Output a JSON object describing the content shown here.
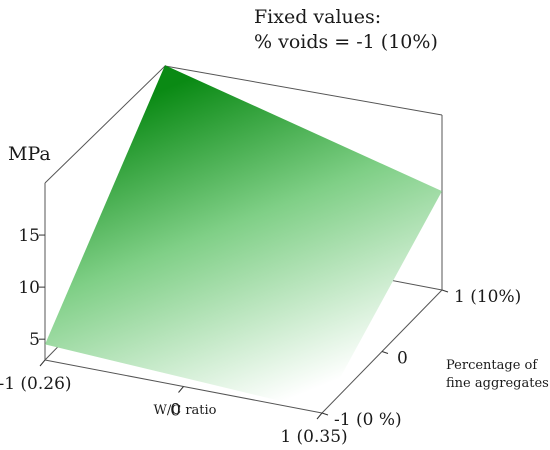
{
  "chart_data": {
    "type": "surface3d",
    "title": "Fixed values:",
    "subtitle": "% voids = -1 (10%)",
    "zlabel": "MPa",
    "xlabel": "W/C ratio",
    "ylabel_line1": "Percentage of",
    "ylabel_line2": "fine aggregates",
    "x_ticks": [
      "-1 (0.26)",
      "0",
      "1 (0.35)"
    ],
    "y_ticks": [
      "-1 (0 %)",
      "0",
      "1 (10%)"
    ],
    "z_ticks": [
      "5",
      "10",
      "15"
    ],
    "xlim": [
      -1,
      1
    ],
    "ylim": [
      -1,
      1
    ],
    "zlim": [
      3,
      20
    ],
    "surface_corners": [
      {
        "x": -1,
        "y": -1,
        "z": 4.5
      },
      {
        "x": 1,
        "y": -1,
        "z": 3.2
      },
      {
        "x": 1,
        "y": 1,
        "z": 12.5
      },
      {
        "x": -1,
        "y": 1,
        "z": 19.5
      }
    ],
    "colormap": {
      "low": "#ffffff",
      "high": "#0a8a14"
    },
    "grid": false
  }
}
